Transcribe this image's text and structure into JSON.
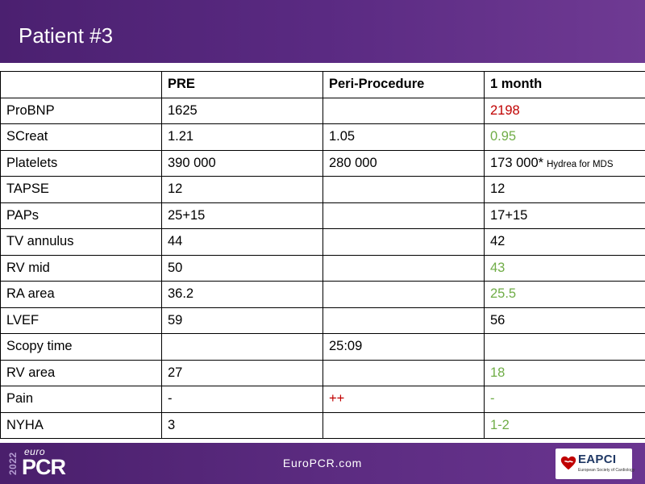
{
  "slide": {
    "title": "Patient #3"
  },
  "table": {
    "headers": [
      "",
      "PRE",
      "Peri-Procedure",
      "1 month"
    ],
    "rows": [
      {
        "label": "ProBNP",
        "pre": "1625",
        "peri": "",
        "month": "2198",
        "month_note": "",
        "month_color": "red",
        "peri_color": ""
      },
      {
        "label": "SCreat",
        "pre": "1.21",
        "peri": "1.05",
        "month": "0.95",
        "month_note": "",
        "month_color": "green",
        "peri_color": ""
      },
      {
        "label": "Platelets",
        "pre": "390 000",
        "peri": "280 000",
        "month": "173 000*",
        "month_note": "Hydrea for MDS",
        "month_color": "",
        "peri_color": ""
      },
      {
        "label": "TAPSE",
        "pre": "12",
        "peri": "",
        "month": "12",
        "month_note": "",
        "month_color": "",
        "peri_color": ""
      },
      {
        "label": "PAPs",
        "pre": "25+15",
        "peri": "",
        "month": "17+15",
        "month_note": "",
        "month_color": "",
        "peri_color": ""
      },
      {
        "label": "TV annulus",
        "pre": "44",
        "peri": "",
        "month": "42",
        "month_note": "",
        "month_color": "",
        "peri_color": ""
      },
      {
        "label": "RV mid",
        "pre": "50",
        "peri": "",
        "month": "43",
        "month_note": "",
        "month_color": "green",
        "peri_color": ""
      },
      {
        "label": "RA area",
        "pre": "36.2",
        "peri": "",
        "month": "25.5",
        "month_note": "",
        "month_color": "green",
        "peri_color": ""
      },
      {
        "label": "LVEF",
        "pre": "59",
        "peri": "",
        "month": "56",
        "month_note": "",
        "month_color": "",
        "peri_color": ""
      },
      {
        "label": "Scopy time",
        "pre": "",
        "peri": "25:09",
        "month": "",
        "month_note": "",
        "month_color": "",
        "peri_color": ""
      },
      {
        "label": "RV area",
        "pre": "27",
        "peri": "",
        "month": "18",
        "month_note": "",
        "month_color": "green",
        "peri_color": ""
      },
      {
        "label": "Pain",
        "pre": "-",
        "peri": "++",
        "month": "-",
        "month_note": "",
        "month_color": "green",
        "peri_color": "red"
      },
      {
        "label": "NYHA",
        "pre": "3",
        "peri": "",
        "month": "1-2",
        "month_note": "",
        "month_color": "green",
        "peri_color": ""
      }
    ]
  },
  "footer": {
    "year": "2022",
    "logo_euro": "euro",
    "logo_pcr": "PCR",
    "website": "EuroPCR.com",
    "eapci_name": "EAPCI",
    "eapci_sub": "European Society of Cardiology"
  },
  "colors": {
    "header_purple": "#5a2a82",
    "increase_red": "#c00000",
    "improve_green": "#70ad47"
  }
}
